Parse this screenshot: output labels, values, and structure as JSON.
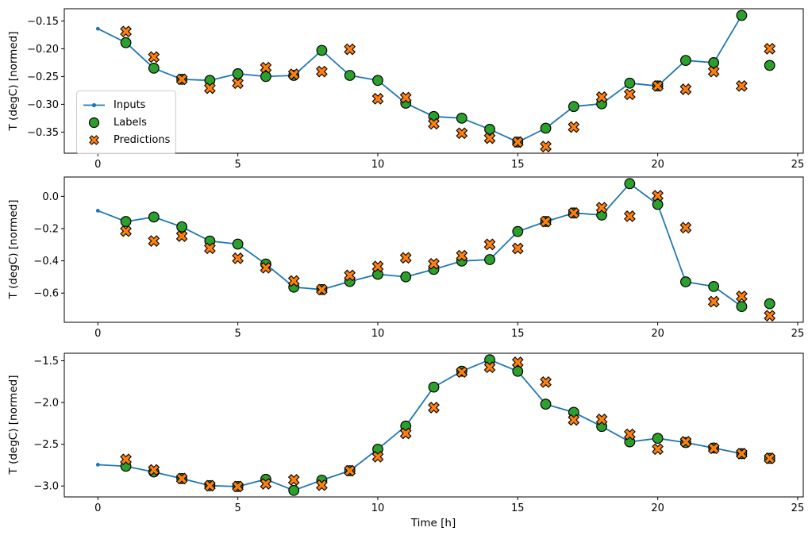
{
  "xlabel": "Time [h]",
  "colors": {
    "inputs": "#1f77b4",
    "labels": "#2ca02c",
    "predictions": "#ff7f0e",
    "marker_edge": "#000000",
    "axis": "#000000",
    "text": "#000000",
    "legend_border": "#cccccc",
    "background": "#ffffff"
  },
  "legend": {
    "position": "center left of top subplot",
    "items": [
      {
        "label": "Inputs",
        "marker": "line-with-dot-icon"
      },
      {
        "label": "Labels",
        "marker": "filled-circle-icon"
      },
      {
        "label": "Predictions",
        "marker": "filled-x-icon"
      }
    ]
  },
  "chart_data": [
    {
      "type": "line",
      "title": "",
      "xlabel": "",
      "ylabel": "T (degC) [normed]",
      "grid": false,
      "xlim": [
        -1.2,
        25.2
      ],
      "ylim": [
        -0.388,
        -0.128
      ],
      "xticks": [
        0,
        5,
        10,
        15,
        20,
        25
      ],
      "xtick_labels": [
        "0",
        "5",
        "10",
        "15",
        "20",
        "25"
      ],
      "yticks": [
        -0.15,
        -0.2,
        -0.25,
        -0.3,
        -0.35
      ],
      "ytick_labels": [
        "−0.15",
        "−0.20",
        "−0.25",
        "−0.30",
        "−0.35"
      ],
      "series": [
        {
          "name": "Inputs",
          "kind": "line",
          "marker": "dot",
          "x": [
            0,
            1,
            2,
            3,
            4,
            5,
            6,
            7,
            8,
            9,
            10,
            11,
            12,
            13,
            14,
            15,
            16,
            17,
            18,
            19,
            20,
            21,
            22,
            23
          ],
          "y": [
            -0.164,
            -0.189,
            -0.235,
            -0.255,
            -0.257,
            -0.245,
            -0.25,
            -0.248,
            -0.203,
            -0.248,
            -0.257,
            -0.298,
            -0.322,
            -0.325,
            -0.345,
            -0.368,
            -0.343,
            -0.304,
            -0.299,
            -0.262,
            -0.267,
            -0.221,
            -0.225,
            -0.14
          ]
        },
        {
          "name": "Labels",
          "kind": "scatter",
          "marker": "circle",
          "x": [
            1,
            2,
            3,
            4,
            5,
            6,
            7,
            8,
            9,
            10,
            11,
            12,
            13,
            14,
            15,
            16,
            17,
            18,
            19,
            20,
            21,
            22,
            23,
            24
          ],
          "y": [
            -0.189,
            -0.235,
            -0.255,
            -0.257,
            -0.245,
            -0.25,
            -0.248,
            -0.203,
            -0.248,
            -0.257,
            -0.298,
            -0.322,
            -0.325,
            -0.345,
            -0.368,
            -0.343,
            -0.304,
            -0.299,
            -0.262,
            -0.267,
            -0.221,
            -0.225,
            -0.14,
            -0.23
          ]
        },
        {
          "name": "Predictions",
          "kind": "scatter",
          "marker": "X",
          "x": [
            1,
            2,
            3,
            4,
            5,
            6,
            7,
            8,
            9,
            10,
            11,
            12,
            13,
            14,
            15,
            16,
            17,
            18,
            19,
            20,
            21,
            22,
            23,
            24
          ],
          "y": [
            -0.169,
            -0.215,
            -0.255,
            -0.271,
            -0.262,
            -0.234,
            -0.246,
            -0.241,
            -0.201,
            -0.29,
            -0.288,
            -0.335,
            -0.352,
            -0.361,
            -0.368,
            -0.376,
            -0.341,
            -0.287,
            -0.282,
            -0.267,
            -0.273,
            -0.241,
            -0.267,
            -0.2
          ]
        }
      ]
    },
    {
      "type": "line",
      "title": "",
      "xlabel": "",
      "ylabel": "T (degC) [normed]",
      "grid": false,
      "xlim": [
        -1.2,
        25.2
      ],
      "ylim": [
        -0.781,
        0.12
      ],
      "xticks": [
        0,
        5,
        10,
        15,
        20,
        25
      ],
      "xtick_labels": [
        "0",
        "5",
        "10",
        "15",
        "20",
        "25"
      ],
      "yticks": [
        0.0,
        -0.2,
        -0.4,
        -0.6
      ],
      "ytick_labels": [
        "0.0",
        "−0.2",
        "−0.4",
        "−0.6"
      ],
      "series": [
        {
          "name": "Inputs",
          "kind": "line",
          "marker": "dot",
          "x": [
            0,
            1,
            2,
            3,
            4,
            5,
            6,
            7,
            8,
            9,
            10,
            11,
            12,
            13,
            14,
            15,
            16,
            17,
            18,
            19,
            20,
            21,
            22,
            23
          ],
          "y": [
            -0.089,
            -0.156,
            -0.128,
            -0.189,
            -0.277,
            -0.296,
            -0.42,
            -0.563,
            -0.578,
            -0.528,
            -0.483,
            -0.499,
            -0.453,
            -0.401,
            -0.392,
            -0.218,
            -0.156,
            -0.103,
            -0.116,
            0.079,
            -0.05,
            -0.53,
            -0.559,
            -0.683
          ]
        },
        {
          "name": "Labels",
          "kind": "scatter",
          "marker": "circle",
          "x": [
            1,
            2,
            3,
            4,
            5,
            6,
            7,
            8,
            9,
            10,
            11,
            12,
            13,
            14,
            15,
            16,
            17,
            18,
            19,
            20,
            21,
            22,
            23,
            24
          ],
          "y": [
            -0.156,
            -0.128,
            -0.189,
            -0.277,
            -0.296,
            -0.42,
            -0.563,
            -0.578,
            -0.528,
            -0.483,
            -0.499,
            -0.453,
            -0.401,
            -0.392,
            -0.218,
            -0.156,
            -0.103,
            -0.116,
            0.079,
            -0.05,
            -0.53,
            -0.559,
            -0.683,
            -0.666
          ]
        },
        {
          "name": "Predictions",
          "kind": "scatter",
          "marker": "X",
          "x": [
            1,
            2,
            3,
            4,
            5,
            6,
            7,
            8,
            9,
            10,
            11,
            12,
            13,
            14,
            15,
            16,
            17,
            18,
            19,
            20,
            21,
            22,
            23,
            24
          ],
          "y": [
            -0.216,
            -0.277,
            -0.247,
            -0.322,
            -0.384,
            -0.443,
            -0.525,
            -0.578,
            -0.49,
            -0.435,
            -0.381,
            -0.418,
            -0.368,
            -0.298,
            -0.323,
            -0.156,
            -0.103,
            -0.07,
            -0.123,
            0.004,
            -0.194,
            -0.653,
            -0.62,
            -0.74
          ]
        }
      ]
    },
    {
      "type": "line",
      "title": "",
      "xlabel": "Time [h]",
      "ylabel": "T (degC) [normed]",
      "grid": false,
      "xlim": [
        -1.2,
        25.2
      ],
      "ylim": [
        -3.131,
        -1.41
      ],
      "xticks": [
        0,
        5,
        10,
        15,
        20,
        25
      ],
      "xtick_labels": [
        "0",
        "5",
        "10",
        "15",
        "20",
        "25"
      ],
      "yticks": [
        -1.5,
        -2.0,
        -2.5,
        -3.0
      ],
      "ytick_labels": [
        "−1.5",
        "−2.0",
        "−2.5",
        "−3.0"
      ],
      "series": [
        {
          "name": "Inputs",
          "kind": "line",
          "marker": "dot",
          "x": [
            0,
            1,
            2,
            3,
            4,
            5,
            6,
            7,
            8,
            9,
            10,
            11,
            12,
            13,
            14,
            15,
            16,
            17,
            18,
            19,
            20,
            21,
            22,
            23
          ],
          "y": [
            -2.745,
            -2.764,
            -2.832,
            -2.911,
            -2.996,
            -3.006,
            -2.92,
            -3.053,
            -2.93,
            -2.817,
            -2.559,
            -2.282,
            -1.815,
            -1.625,
            -1.488,
            -1.626,
            -2.02,
            -2.117,
            -2.287,
            -2.471,
            -2.429,
            -2.48,
            -2.545,
            -2.613
          ]
        },
        {
          "name": "Labels",
          "kind": "scatter",
          "marker": "circle",
          "x": [
            1,
            2,
            3,
            4,
            5,
            6,
            7,
            8,
            9,
            10,
            11,
            12,
            13,
            14,
            15,
            16,
            17,
            18,
            19,
            20,
            21,
            22,
            23,
            24
          ],
          "y": [
            -2.764,
            -2.832,
            -2.911,
            -2.996,
            -3.006,
            -2.92,
            -3.053,
            -2.93,
            -2.817,
            -2.559,
            -2.282,
            -1.815,
            -1.625,
            -1.488,
            -1.626,
            -2.02,
            -2.117,
            -2.287,
            -2.471,
            -2.429,
            -2.48,
            -2.545,
            -2.613,
            -2.669
          ]
        },
        {
          "name": "Predictions",
          "kind": "scatter",
          "marker": "X",
          "x": [
            1,
            2,
            3,
            4,
            5,
            6,
            7,
            8,
            9,
            10,
            11,
            12,
            13,
            14,
            15,
            16,
            17,
            18,
            19,
            20,
            21,
            22,
            23,
            24
          ],
          "y": [
            -2.681,
            -2.808,
            -2.911,
            -2.996,
            -3.006,
            -2.974,
            -2.927,
            -2.99,
            -2.817,
            -2.65,
            -2.37,
            -2.061,
            -1.635,
            -1.578,
            -1.519,
            -1.755,
            -2.209,
            -2.202,
            -2.382,
            -2.559,
            -2.47,
            -2.549,
            -2.613,
            -2.669
          ]
        }
      ]
    }
  ]
}
